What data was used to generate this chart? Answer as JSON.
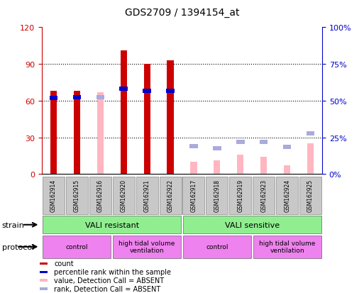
{
  "title": "GDS2709 / 1394154_at",
  "samples": [
    "GSM162914",
    "GSM162915",
    "GSM162916",
    "GSM162920",
    "GSM162921",
    "GSM162922",
    "GSM162917",
    "GSM162918",
    "GSM162919",
    "GSM162923",
    "GSM162924",
    "GSM162925"
  ],
  "count_values": [
    68,
    68,
    null,
    101,
    90,
    93,
    null,
    null,
    null,
    null,
    null,
    null
  ],
  "rank_values": [
    62,
    63,
    null,
    70,
    68,
    68,
    null,
    null,
    null,
    null,
    null,
    null
  ],
  "absent_value_values": [
    null,
    null,
    67,
    null,
    null,
    null,
    10,
    11,
    16,
    14,
    7,
    25
  ],
  "absent_rank_values": [
    null,
    null,
    63,
    null,
    null,
    null,
    23,
    21,
    26,
    26,
    22,
    33
  ],
  "ylim_left": [
    0,
    120
  ],
  "ylim_right": [
    0,
    100
  ],
  "yticks_left": [
    0,
    30,
    60,
    90,
    120
  ],
  "ytick_labels_left": [
    "0",
    "30",
    "60",
    "90",
    "120"
  ],
  "yticks_right_pct": [
    0,
    25,
    50,
    75,
    100
  ],
  "ytick_labels_right": [
    "0%",
    "25%",
    "50%",
    "75%",
    "100%"
  ],
  "strain_groups": [
    {
      "label": "VALI resistant",
      "start": 0,
      "end": 6
    },
    {
      "label": "VALI sensitive",
      "start": 6,
      "end": 12
    }
  ],
  "protocol_groups": [
    {
      "label": "control",
      "start": 0,
      "end": 3
    },
    {
      "label": "high tidal volume\nventilation",
      "start": 3,
      "end": 6
    },
    {
      "label": "control",
      "start": 6,
      "end": 9
    },
    {
      "label": "high tidal volume\nventilation",
      "start": 9,
      "end": 12
    }
  ],
  "count_color": "#CC0000",
  "rank_color": "#0000CC",
  "absent_value_color": "#FFB6C1",
  "absent_rank_color": "#AAAADD",
  "bg_color": "#FFFFFF",
  "left_axis_color": "#CC0000",
  "right_axis_color": "#0000CC",
  "sample_bg_color": "#C8C8C8",
  "strain_color": "#90EE90",
  "protocol_color": "#EE82EE",
  "grid_color": "black"
}
